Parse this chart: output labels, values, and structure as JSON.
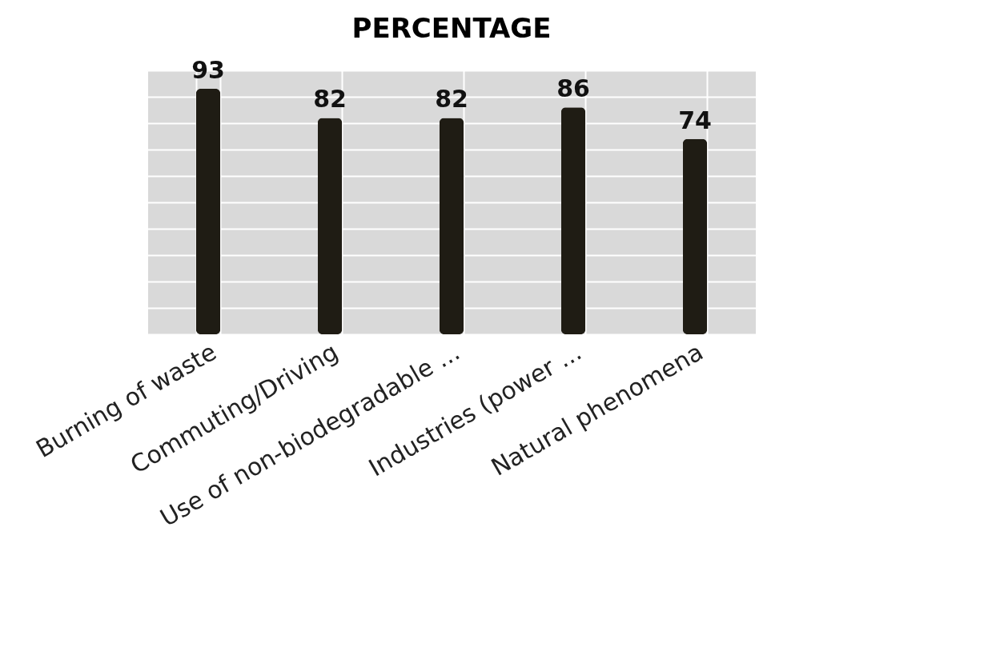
{
  "chart_data": {
    "type": "bar",
    "title": "PERCENTAGE",
    "categories": [
      "Burning of waste",
      "Commuting/Driving",
      "Use of non-biodegradable ...",
      "Industries (power ...",
      "Natural phenomena"
    ],
    "values": [
      93,
      82,
      82,
      86,
      74
    ],
    "color": "#1f1c14",
    "data_labels": true,
    "grid": true,
    "tick_labels": "x"
  }
}
